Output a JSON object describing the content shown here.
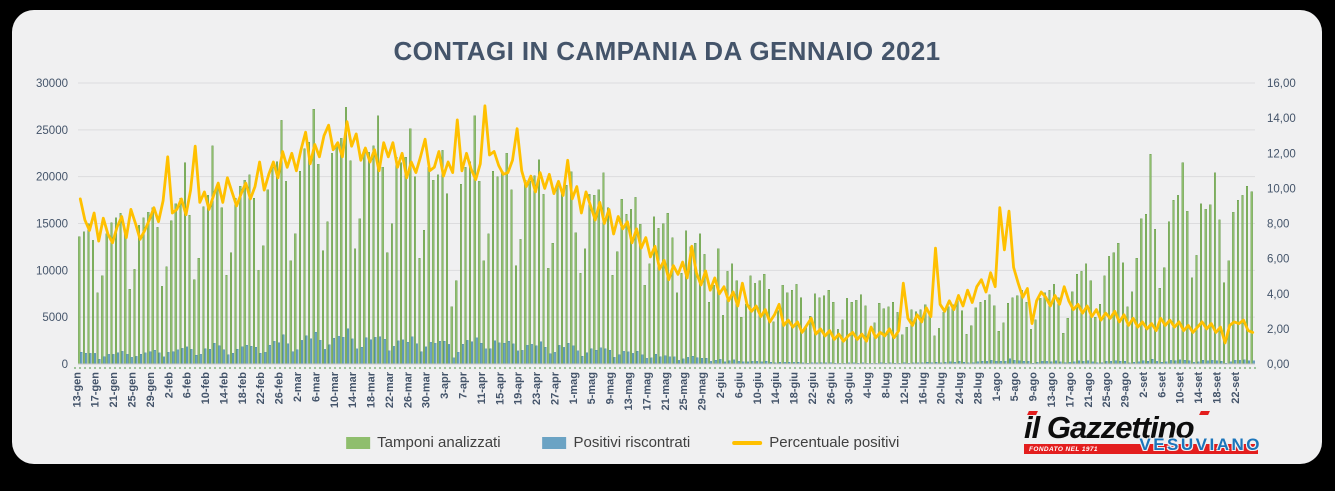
{
  "title": "CONTAGI IN CAMPANIA DA GENNAIO 2021",
  "colors": {
    "page_background": "#000000",
    "card_background": "#f0f0f1",
    "title_text": "#44546a",
    "axis_text": "#44546a",
    "gridline": "#dcdcde",
    "tamponi_green": "#8fbe6d",
    "tamponi_green_edge": "#5e9444",
    "positivi_blue": "#6ba3c4",
    "positivi_blue_edge": "#4d86a8",
    "percent_line_yellow": "#ffc000",
    "dotted_axis_green": "#84b57f",
    "logo_red": "#e31e1e",
    "logo_blue": "#1b75bb"
  },
  "legend": [
    {
      "label": "Tamponi analizzati",
      "color": "#8fbe6d",
      "type": "bar"
    },
    {
      "label": "Positivi riscontrati",
      "color": "#6ba3c4",
      "type": "bar"
    },
    {
      "label": "Percentuale positivi",
      "color": "#ffc000",
      "type": "line"
    }
  ],
  "logo": {
    "name": "il Gazzettino",
    "banner": "FONDATO NEL 1971",
    "subtitle": "VESUVIANO"
  },
  "chart_data": {
    "type": "combo-bar-line",
    "title": "CONTAGI IN CAMPANIA DA GENNAIO 2021",
    "y_left_max": 30000,
    "y_right_max": 16,
    "y_left_ticks": [
      "0",
      "5000",
      "10000",
      "15000",
      "20000",
      "25000",
      "30000"
    ],
    "y_right_ticks": [
      "0,00",
      "2,00",
      "4,00",
      "6,00",
      "8,00",
      "10,00",
      "12,00",
      "14,00",
      "16,00"
    ],
    "x_label_every": 4,
    "x_labels": [
      "13-gen",
      "17-gen",
      "21-gen",
      "25-gen",
      "29-gen",
      "2-feb",
      "6-feb",
      "10-feb",
      "14-feb",
      "18-feb",
      "22-feb",
      "26-feb",
      "2-mar",
      "6-mar",
      "10-mar",
      "14-mar",
      "18-mar",
      "22-mar",
      "26-mar",
      "30-mar",
      "3-apr",
      "7-apr",
      "11-apr",
      "15-apr",
      "19-apr",
      "23-apr",
      "27-apr",
      "1-mag",
      "5-mag",
      "9-mag",
      "13-mag",
      "17-mag",
      "21-mag",
      "25-mag",
      "29-mag",
      "2-giu",
      "6-giu",
      "10-giu",
      "14-giu",
      "18-giu",
      "22-giu",
      "26-giu",
      "30-giu",
      "4-lug",
      "8-lug",
      "12-lug",
      "16-lug",
      "20-lug",
      "24-lug",
      "28-lug",
      "1-ago",
      "5-ago",
      "9-ago",
      "13-ago",
      "17-ago",
      "21-ago",
      "25-ago",
      "29-ago",
      "2-set",
      "6-set",
      "10-set",
      "14-set",
      "18-set",
      "22-set"
    ],
    "series_names": {
      "tamponi": "Tamponi analizzati",
      "positivi": "Positivi riscontrati",
      "percentuale": "Percentuale positivi"
    },
    "tamponi": [
      13600,
      14100,
      15000,
      13200,
      7600,
      9400,
      13900,
      15100,
      15600,
      16100,
      14200,
      8000,
      10100,
      14800,
      15600,
      16200,
      16700,
      14600,
      8300,
      10400,
      15300,
      17100,
      17700,
      21500,
      15900,
      9000,
      11300,
      16800,
      18000,
      23300,
      19100,
      16700,
      9500,
      11900,
      17700,
      19000,
      19600,
      20200,
      17700,
      10000,
      12600,
      18600,
      21000,
      21600,
      26000,
      19500,
      11000,
      13900,
      20600,
      23000,
      23700,
      27200,
      21300,
      12100,
      15200,
      22500,
      23400,
      24100,
      27400,
      21700,
      12300,
      15500,
      22900,
      22600,
      23300,
      26500,
      21000,
      11900,
      15000,
      22100,
      21500,
      22100,
      25100,
      20000,
      11300,
      14300,
      21000,
      19600,
      20200,
      22800,
      18200,
      6100,
      8900,
      19200,
      21000,
      21600,
      26500,
      19500,
      11000,
      13900,
      20600,
      20000,
      20600,
      22500,
      18600,
      10500,
      13300,
      19600,
      19500,
      20100,
      21800,
      18100,
      10200,
      12900,
      19100,
      18500,
      19100,
      20500,
      14000,
      9700,
      12300,
      18100,
      18000,
      18600,
      20400,
      16700,
      9500,
      12000,
      17600,
      16000,
      16500,
      17800,
      14900,
      8400,
      10700,
      15700,
      14500,
      15000,
      16100,
      13500,
      7600,
      9700,
      14200,
      12500,
      12900,
      13900,
      11700,
      6600,
      8400,
      12300,
      5200,
      9900,
      10700,
      8900,
      5000,
      6400,
      9400,
      8600,
      8900,
      9600,
      8000,
      4500,
      5700,
      8400,
      7600,
      7900,
      8500,
      7100,
      4000,
      5100,
      7500,
      7100,
      7300,
      7900,
      6600,
      3700,
      4700,
      7000,
      6600,
      6800,
      7400,
      6200,
      3500,
      4400,
      6500,
      5900,
      6100,
      6600,
      5500,
      3100,
      3900,
      5800,
      5600,
      5800,
      6300,
      5300,
      3000,
      3800,
      5500,
      6100,
      6300,
      6800,
      5700,
      3200,
      4100,
      6000,
      6600,
      6800,
      7400,
      6200,
      3500,
      4400,
      6500,
      7100,
      7300,
      7900,
      6600,
      3700,
      4700,
      7000,
      7600,
      7900,
      8500,
      7100,
      3300,
      4900,
      7700,
      9600,
      9900,
      10700,
      8900,
      5000,
      6400,
      9400,
      11500,
      11900,
      12900,
      10800,
      6100,
      7700,
      11300,
      15500,
      16000,
      22400,
      14400,
      8100,
      10300,
      15200,
      17500,
      18000,
      21500,
      16300,
      9200,
      11600,
      17100,
      16500,
      17000,
      20400,
      15400,
      8700,
      11000,
      16200,
      17500,
      18000,
      19000,
      18400
    ],
    "positivi": [
      1280,
      1160,
      1140,
      1140,
      530,
      780,
      1030,
      1040,
      1220,
      1350,
      1020,
      700,
      810,
      1050,
      1190,
      1330,
      1490,
      1180,
      770,
      1230,
      1320,
      1500,
      1660,
      1830,
      1570,
      940,
      1040,
      1650,
      1580,
      2240,
      1970,
      1540,
      1010,
      1170,
      1590,
      1840,
      2020,
      1900,
      1790,
      1150,
      1250,
      2010,
      2420,
      2290,
      3150,
      2180,
      1320,
      1530,
      2510,
      3040,
      2700,
      3400,
      2510,
      1570,
      2070,
      2750,
      2950,
      2840,
      3780,
      2690,
      1610,
      1800,
      2820,
      2600,
      2840,
      2920,
      2650,
      1400,
      1890,
      2480,
      2580,
      2340,
      2890,
      2180,
      1330,
      1830,
      2310,
      2200,
      2440,
      2440,
      2090,
      660,
      1240,
      2110,
      2520,
      2400,
      2780,
      2220,
      1620,
      1650,
      2490,
      2260,
      2220,
      2450,
      2160,
      1410,
      1460,
      1980,
      2090,
      1970,
      2380,
      1810,
      1100,
      1250,
      1990,
      1780,
      2220,
      1930,
      1410,
      830,
      1210,
      1630,
      1480,
      1710,
      1630,
      1470,
      700,
      1010,
      1360,
      1300,
      1140,
      1370,
      980,
      600,
      650,
      1050,
      780,
      890,
      770,
      760,
      390,
      560,
      700,
      840,
      670,
      630,
      620,
      280,
      410,
      490,
      230,
      360,
      440,
      290,
      230,
      220,
      280,
      280,
      240,
      300,
      190,
      130,
      190,
      180,
      190,
      170,
      200,
      130,
      90,
      130,
      130,
      140,
      120,
      150,
      90,
      60,
      60,
      110,
      120,
      100,
      130,
      80,
      70,
      70,
      120,
      90,
      120,
      100,
      100,
      140,
      100,
      130,
      160,
      140,
      200,
      140,
      200,
      130,
      170,
      220,
      200,
      270,
      190,
      130,
      140,
      260,
      320,
      280,
      380,
      270,
      310,
      290,
      570,
      390,
      340,
      300,
      280,
      90,
      170,
      290,
      290,
      260,
      330,
      240,
      150,
      180,
      240,
      330,
      290,
      350,
      240,
      160,
      160,
      270,
      300,
      360,
      310,
      300,
      130,
      200,
      240,
      370,
      320,
      520,
      270,
      210,
      230,
      380,
      370,
      430,
      410,
      360,
      170,
      240,
      410,
      330,
      390,
      370,
      320,
      100,
      240,
      390,
      400,
      450,
      360,
      330
    ],
    "percentuale": [
      9.4,
      8.2,
      7.6,
      8.6,
      7.0,
      8.3,
      7.4,
      6.9,
      7.8,
      8.4,
      7.2,
      8.8,
      8.0,
      7.1,
      7.6,
      8.2,
      8.9,
      8.1,
      9.3,
      11.8,
      8.6,
      8.8,
      9.4,
      8.5,
      9.9,
      12.4,
      9.2,
      9.8,
      8.8,
      9.6,
      10.3,
      9.2,
      10.6,
      9.8,
      9.0,
      9.7,
      10.3,
      9.4,
      10.1,
      11.5,
      9.9,
      10.8,
      11.5,
      10.6,
      12.1,
      11.2,
      12.0,
      11.0,
      12.2,
      13.2,
      11.4,
      12.5,
      11.8,
      13.0,
      13.6,
      12.2,
      12.6,
      11.8,
      13.8,
      12.4,
      13.1,
      11.6,
      12.3,
      11.5,
      12.2,
      11.0,
      12.6,
      11.8,
      12.6,
      11.2,
      12.0,
      10.6,
      11.5,
      10.9,
      11.8,
      12.8,
      11.0,
      11.2,
      12.1,
      10.7,
      11.5,
      10.9,
      13.9,
      11.0,
      12.0,
      11.1,
      10.5,
      11.4,
      14.7,
      11.9,
      12.1,
      11.3,
      10.8,
      10.9,
      11.6,
      13.4,
      11.0,
      10.1,
      10.7,
      9.8,
      10.9,
      10.0,
      10.8,
      9.7,
      10.4,
      9.6,
      11.6,
      9.4,
      10.1,
      8.6,
      9.8,
      9.0,
      8.2,
      9.2,
      8.0,
      8.8,
      7.4,
      8.4,
      7.7,
      8.1,
      6.9,
      7.7,
      6.6,
      7.2,
      6.1,
      6.7,
      5.4,
      5.9,
      4.8,
      5.6,
      5.1,
      5.8,
      4.9,
      6.7,
      5.2,
      4.5,
      5.3,
      4.2,
      4.9,
      4.0,
      4.4,
      3.6,
      4.1,
      3.3,
      4.6,
      3.4,
      3.0,
      3.3,
      2.7,
      3.1,
      2.4,
      2.8,
      3.4,
      2.2,
      2.5,
      2.1,
      2.4,
      1.8,
      2.2,
      2.6,
      1.7,
      2.0,
      1.6,
      1.9,
      1.4,
      1.7,
      1.3,
      1.6,
      1.8,
      1.4,
      1.7,
      1.3,
      2.1,
      1.5,
      1.8,
      1.6,
      2.0,
      1.5,
      1.9,
      4.6,
      2.6,
      2.2,
      2.8,
      2.4,
      3.2,
      2.7,
      6.6,
      3.4,
      3.0,
      3.6,
      3.1,
      3.9,
      3.3,
      4.2,
      3.5,
      4.4,
      4.8,
      4.1,
      5.2,
      4.4,
      8.9,
      6.5,
      8.7,
      5.5,
      4.6,
      3.8,
      4.3,
      2.3,
      3.6,
      4.1,
      3.8,
      3.3,
      3.9,
      3.4,
      4.4,
      3.6,
      3.1,
      3.4,
      2.9,
      3.3,
      2.7,
      3.1,
      2.5,
      2.9,
      2.6,
      3.0,
      2.4,
      2.8,
      2.2,
      2.6,
      2.1,
      2.4,
      2.0,
      2.3,
      1.9,
      2.6,
      2.2,
      2.5,
      2.1,
      2.4,
      1.9,
      2.2,
      1.8,
      2.1,
      2.4,
      2.0,
      2.3,
      1.8,
      2.1,
      1.2,
      2.2,
      2.4,
      2.3,
      2.5,
      1.9,
      1.8
    ]
  }
}
